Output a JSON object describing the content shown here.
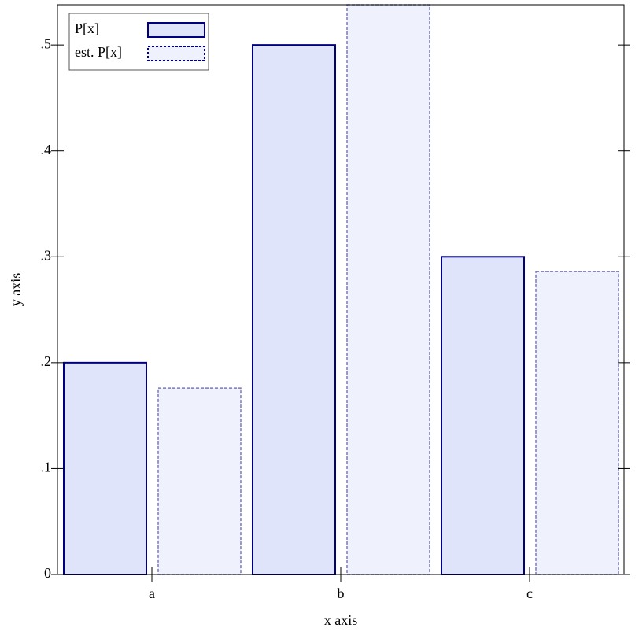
{
  "chart_data": {
    "type": "bar",
    "x_label": "x axis",
    "y_label": "y axis",
    "categories": [
      "a",
      "b",
      "c"
    ],
    "series": [
      {
        "name": "P[x]",
        "color": "#e0e4fa",
        "stroke": "#00007f",
        "dashed": false,
        "values": [
          0.2,
          0.5,
          0.3
        ]
      },
      {
        "name": "est. P[x]",
        "color": "#eff1fd",
        "stroke": "#7a7ab8",
        "dashed": true,
        "values": [
          0.176,
          0.538,
          0.286
        ]
      }
    ],
    "ylim": [
      0,
      0.538
    ],
    "yticks": [
      0,
      {
        "value": 0.1,
        "label": ".1"
      },
      {
        "value": 0.2,
        "label": ".2"
      },
      {
        "value": 0.3,
        "label": ".3"
      },
      {
        "value": 0.4,
        "label": ".4"
      },
      {
        "value": 0.5,
        "label": ".5"
      }
    ],
    "legend": "top-left"
  }
}
